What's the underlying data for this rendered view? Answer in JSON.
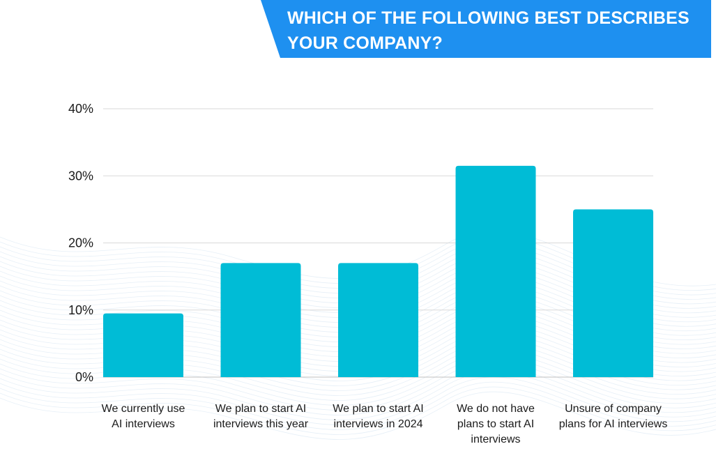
{
  "header": {
    "title_line1": "WHICH OF THE FOLLOWING BEST DESCRIBES",
    "title_line2": "YOUR COMPANY?"
  },
  "colors": {
    "banner": "#1e90f0",
    "bar": "#00bcd6",
    "grid": "#d9d9d9"
  },
  "chart_data": {
    "type": "bar",
    "title": "WHICH OF THE FOLLOWING BEST DESCRIBES YOUR COMPANY?",
    "categories": [
      "We currently use AI interviews",
      "We plan to start AI interviews this year",
      "We plan to start AI interviews in 2024",
      "We do not have plans to start AI interviews",
      "Unsure of company plans for AI interviews"
    ],
    "category_lines": [
      [
        "We currently use",
        "AI interviews"
      ],
      [
        "We plan to start AI",
        "interviews this year"
      ],
      [
        "We plan to start AI",
        "interviews in 2024"
      ],
      [
        "We do not have",
        "plans to start AI",
        "interviews"
      ],
      [
        "Unsure of company",
        "plans for AI interviews"
      ]
    ],
    "values": [
      9.5,
      17,
      17,
      31.5,
      25
    ],
    "ylim": [
      0,
      40
    ],
    "yticks": [
      0,
      10,
      20,
      30,
      40
    ],
    "ytick_labels": [
      "0%",
      "10%",
      "20%",
      "30%",
      "40%"
    ],
    "grid": true,
    "legend": "none"
  }
}
